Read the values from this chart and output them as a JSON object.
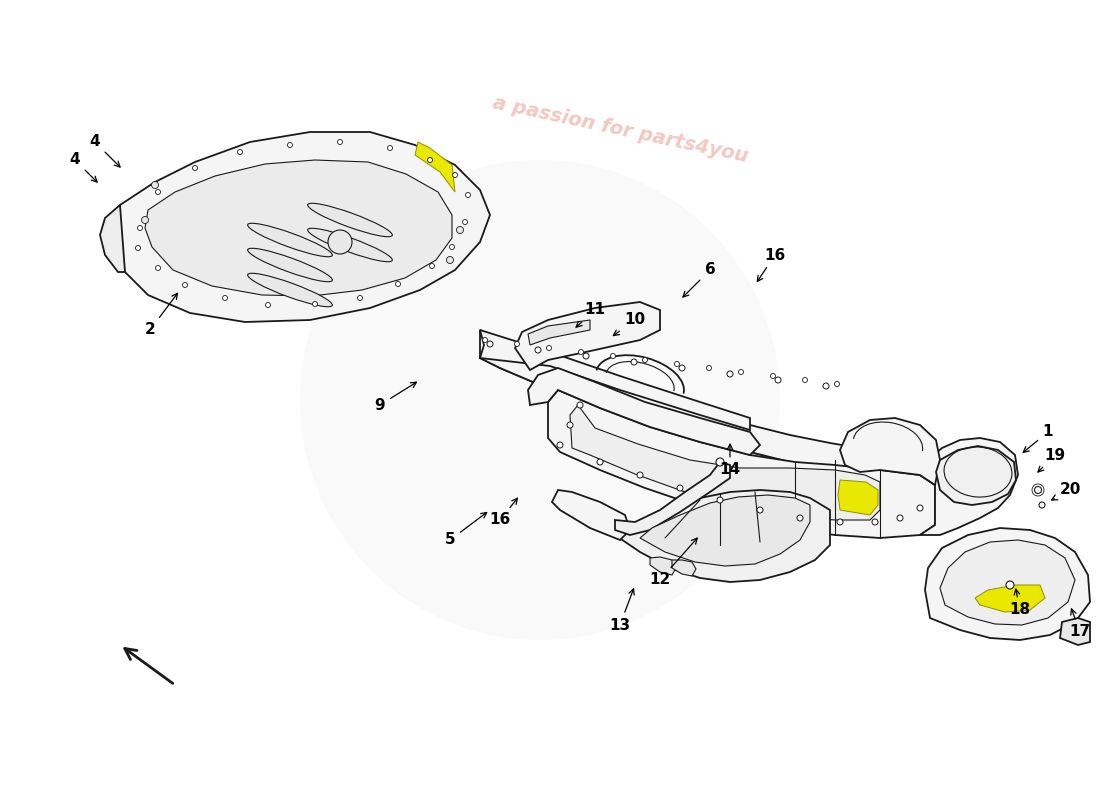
{
  "background_color": "#ffffff",
  "line_color": "#1a1a1a",
  "fill_light": "#f5f5f5",
  "fill_mid": "#e8e8e8",
  "fill_dark": "#d0d0d0",
  "fill_yellow": "#e8e800",
  "watermark_text": "a passion for parts4you",
  "watermark_color": "#cc2200",
  "watermark_alpha": 0.25,
  "logo_alpha": 0.18,
  "arrow_color": "#000000",
  "label_color": "#000000",
  "label_fontsize": 11,
  "lw_main": 1.3,
  "lw_thin": 0.8,
  "annotations": [
    [
      "1",
      1048,
      368,
      1020,
      345
    ],
    [
      "2",
      150,
      470,
      180,
      510
    ],
    [
      "4",
      95,
      658,
      123,
      630
    ],
    [
      "4",
      75,
      640,
      100,
      615
    ],
    [
      "5",
      450,
      260,
      490,
      290
    ],
    [
      "6",
      710,
      530,
      680,
      500
    ],
    [
      "9",
      380,
      395,
      420,
      420
    ],
    [
      "10",
      635,
      480,
      610,
      462
    ],
    [
      "11",
      595,
      490,
      573,
      470
    ],
    [
      "12",
      660,
      220,
      700,
      265
    ],
    [
      "13",
      620,
      175,
      635,
      215
    ],
    [
      "14",
      730,
      330,
      730,
      360
    ],
    [
      "16",
      500,
      280,
      520,
      305
    ],
    [
      "16",
      775,
      545,
      755,
      515
    ],
    [
      "17",
      1080,
      168,
      1070,
      195
    ],
    [
      "18",
      1020,
      190,
      1015,
      215
    ],
    [
      "19",
      1055,
      345,
      1035,
      325
    ],
    [
      "20",
      1070,
      310,
      1048,
      298
    ]
  ]
}
